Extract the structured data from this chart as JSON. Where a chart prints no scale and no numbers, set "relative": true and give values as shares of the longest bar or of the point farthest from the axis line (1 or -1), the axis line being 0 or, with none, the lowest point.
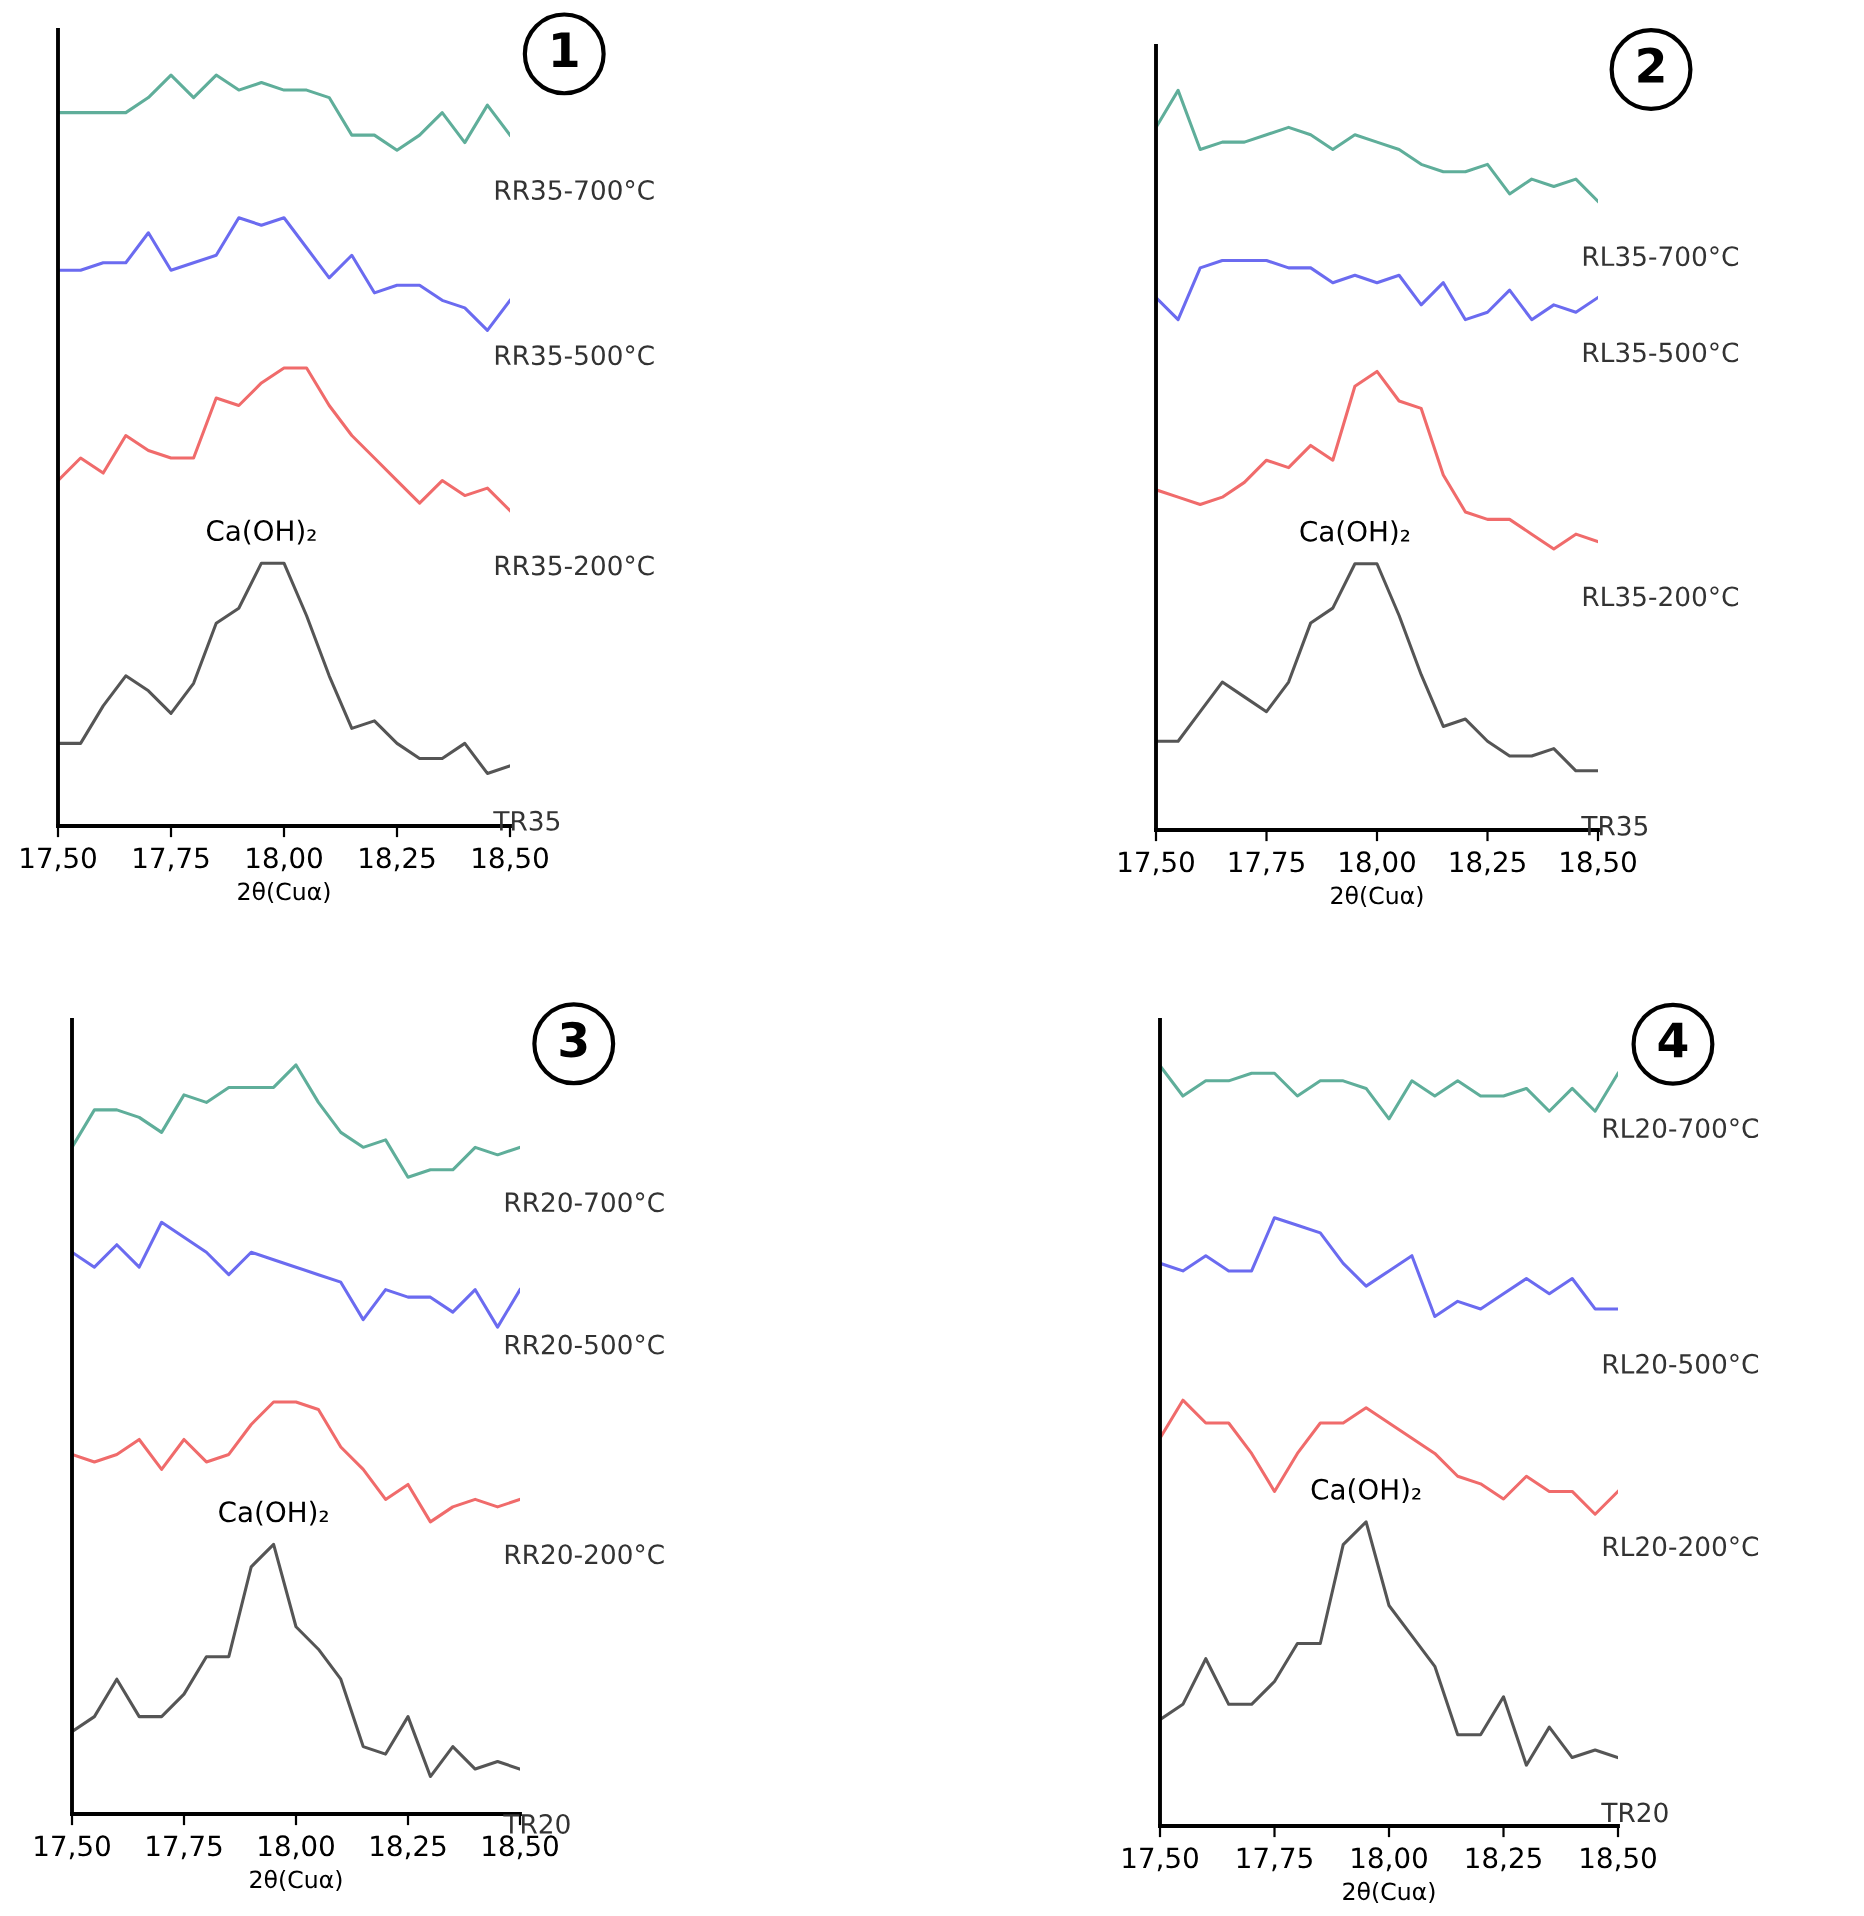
{
  "chart_data": [
    {
      "type": "line",
      "title": "1",
      "xlabel": "2θ(Cuα)",
      "relative": true,
      "legend": false,
      "grid": false,
      "tick_labels": "x",
      "x": [
        17.5,
        17.55,
        17.6,
        17.65,
        17.7,
        17.75,
        17.8,
        17.85,
        17.9,
        17.95,
        18.0,
        18.05,
        18.1,
        18.15,
        18.2,
        18.25,
        18.3,
        18.35,
        18.4,
        18.45,
        18.5
      ],
      "xlim": [
        17.5,
        18.5
      ],
      "xticks": [
        {
          "value": 17.5,
          "label": "17,50"
        },
        {
          "value": 17.75,
          "label": "17,75"
        },
        {
          "value": 18.0,
          "label": "18,00"
        },
        {
          "value": 18.25,
          "label": "18,25"
        },
        {
          "value": 18.5,
          "label": "18,50"
        }
      ],
      "annotations": [
        "Ca(OH)₂"
      ],
      "series": [
        {
          "name": "RR35-700°C",
          "color": "#5fae9a",
          "values": [
            0.95,
            0.95,
            0.95,
            0.95,
            0.97,
            1.0,
            0.97,
            1.0,
            0.98,
            0.99,
            0.98,
            0.98,
            0.97,
            0.92,
            0.92,
            0.9,
            0.92,
            0.95,
            0.91,
            0.96,
            0.92
          ]
        },
        {
          "name": "RR35-500°C",
          "color": "#6b6bf0",
          "values": [
            0.74,
            0.74,
            0.75,
            0.75,
            0.79,
            0.74,
            0.75,
            0.76,
            0.81,
            0.8,
            0.81,
            0.77,
            0.73,
            0.76,
            0.71,
            0.72,
            0.72,
            0.7,
            0.69,
            0.66,
            0.7
          ]
        },
        {
          "name": "RR35-200°C",
          "color": "#f06b6b",
          "values": [
            0.46,
            0.49,
            0.47,
            0.52,
            0.5,
            0.49,
            0.49,
            0.57,
            0.56,
            0.59,
            0.61,
            0.61,
            0.56,
            0.52,
            0.49,
            0.46,
            0.43,
            0.46,
            0.44,
            0.45,
            0.42
          ]
        },
        {
          "name": "TR35",
          "color": "#555555",
          "values": [
            0.11,
            0.11,
            0.16,
            0.2,
            0.18,
            0.15,
            0.19,
            0.27,
            0.29,
            0.35,
            0.35,
            0.28,
            0.2,
            0.13,
            0.14,
            0.11,
            0.09,
            0.09,
            0.11,
            0.07,
            0.08
          ]
        }
      ]
    },
    {
      "type": "line",
      "title": "2",
      "xlabel": "2θ(Cuα)",
      "relative": true,
      "legend": false,
      "grid": false,
      "tick_labels": "x",
      "x": [
        17.5,
        17.55,
        17.6,
        17.65,
        17.7,
        17.75,
        17.8,
        17.85,
        17.9,
        17.95,
        18.0,
        18.05,
        18.1,
        18.15,
        18.2,
        18.25,
        18.3,
        18.35,
        18.4,
        18.45,
        18.5
      ],
      "xlim": [
        17.5,
        18.5
      ],
      "xticks": [
        {
          "value": 17.5,
          "label": "17,50"
        },
        {
          "value": 17.75,
          "label": "17,75"
        },
        {
          "value": 18.0,
          "label": "18,00"
        },
        {
          "value": 18.25,
          "label": "18,25"
        },
        {
          "value": 18.5,
          "label": "18,50"
        }
      ],
      "annotations": [
        "Ca(OH)₂"
      ],
      "series": [
        {
          "name": "RL35-700°C",
          "color": "#5fae9a",
          "values": [
            0.95,
            1.0,
            0.92,
            0.93,
            0.93,
            0.94,
            0.95,
            0.94,
            0.92,
            0.94,
            0.93,
            0.92,
            0.9,
            0.89,
            0.89,
            0.9,
            0.86,
            0.88,
            0.87,
            0.88,
            0.85
          ]
        },
        {
          "name": "RL35-500°C",
          "color": "#6b6bf0",
          "values": [
            0.72,
            0.69,
            0.76,
            0.77,
            0.77,
            0.77,
            0.76,
            0.76,
            0.74,
            0.75,
            0.74,
            0.75,
            0.71,
            0.74,
            0.69,
            0.7,
            0.73,
            0.69,
            0.71,
            0.7,
            0.72
          ]
        },
        {
          "name": "RL35-200°C",
          "color": "#f06b6b",
          "values": [
            0.46,
            0.45,
            0.44,
            0.45,
            0.47,
            0.5,
            0.49,
            0.52,
            0.5,
            0.6,
            0.62,
            0.58,
            0.57,
            0.48,
            0.43,
            0.42,
            0.42,
            0.4,
            0.38,
            0.4,
            0.39
          ]
        },
        {
          "name": "TR35",
          "color": "#555555",
          "values": [
            0.12,
            0.12,
            0.16,
            0.2,
            0.18,
            0.16,
            0.2,
            0.28,
            0.3,
            0.36,
            0.36,
            0.29,
            0.21,
            0.14,
            0.15,
            0.12,
            0.1,
            0.1,
            0.11,
            0.08,
            0.08
          ]
        }
      ]
    },
    {
      "type": "line",
      "title": "3",
      "xlabel": "2θ(Cuα)",
      "relative": true,
      "legend": false,
      "grid": false,
      "tick_labels": "x",
      "x": [
        17.5,
        17.55,
        17.6,
        17.65,
        17.7,
        17.75,
        17.8,
        17.85,
        17.9,
        17.95,
        18.0,
        18.05,
        18.1,
        18.15,
        18.2,
        18.25,
        18.3,
        18.35,
        18.4,
        18.45,
        18.5
      ],
      "xlim": [
        17.5,
        18.5
      ],
      "xticks": [
        {
          "value": 17.5,
          "label": "17,50"
        },
        {
          "value": 17.75,
          "label": "17,75"
        },
        {
          "value": 18.0,
          "label": "18,00"
        },
        {
          "value": 18.25,
          "label": "18,25"
        },
        {
          "value": 18.5,
          "label": "18,50"
        }
      ],
      "annotations": [
        "Ca(OH)₂"
      ],
      "series": [
        {
          "name": "RR20-700°C",
          "color": "#5fae9a",
          "values": [
            0.89,
            0.94,
            0.94,
            0.93,
            0.91,
            0.96,
            0.95,
            0.97,
            0.97,
            0.97,
            1.0,
            0.95,
            0.91,
            0.89,
            0.9,
            0.85,
            0.86,
            0.86,
            0.89,
            0.88,
            0.89
          ]
        },
        {
          "name": "RR20-500°C",
          "color": "#6b6bf0",
          "values": [
            0.75,
            0.73,
            0.76,
            0.73,
            0.79,
            0.77,
            0.75,
            0.72,
            0.75,
            0.74,
            0.73,
            0.72,
            0.71,
            0.66,
            0.7,
            0.69,
            0.69,
            0.67,
            0.7,
            0.65,
            0.7
          ]
        },
        {
          "name": "RR20-200°C",
          "color": "#f06b6b",
          "values": [
            0.48,
            0.47,
            0.48,
            0.5,
            0.46,
            0.5,
            0.47,
            0.48,
            0.52,
            0.55,
            0.55,
            0.54,
            0.49,
            0.46,
            0.42,
            0.44,
            0.39,
            0.41,
            0.42,
            0.41,
            0.42
          ]
        },
        {
          "name": "TR20",
          "color": "#555555",
          "values": [
            0.11,
            0.13,
            0.18,
            0.13,
            0.13,
            0.16,
            0.21,
            0.21,
            0.33,
            0.36,
            0.25,
            0.22,
            0.18,
            0.09,
            0.08,
            0.13,
            0.05,
            0.09,
            0.06,
            0.07,
            0.06
          ]
        }
      ]
    },
    {
      "type": "line",
      "title": "4",
      "xlabel": "2θ(Cuα)",
      "relative": true,
      "legend": false,
      "grid": false,
      "tick_labels": "x",
      "x": [
        17.5,
        17.55,
        17.6,
        17.65,
        17.7,
        17.75,
        17.8,
        17.85,
        17.9,
        17.95,
        18.0,
        18.05,
        18.1,
        18.15,
        18.2,
        18.25,
        18.3,
        18.35,
        18.4,
        18.45,
        18.5
      ],
      "xlim": [
        17.5,
        18.5
      ],
      "xticks": [
        {
          "value": 17.5,
          "label": "17,50"
        },
        {
          "value": 17.75,
          "label": "17,75"
        },
        {
          "value": 18.0,
          "label": "18,00"
        },
        {
          "value": 18.25,
          "label": "18,25"
        },
        {
          "value": 18.5,
          "label": "18,50"
        }
      ],
      "annotations": [
        "Ca(OH)₂"
      ],
      "series": [
        {
          "name": "RL20-700°C",
          "color": "#5fae9a",
          "values": [
            1.0,
            0.96,
            0.98,
            0.98,
            0.99,
            0.99,
            0.96,
            0.98,
            0.98,
            0.97,
            0.93,
            0.98,
            0.96,
            0.98,
            0.96,
            0.96,
            0.97,
            0.94,
            0.97,
            0.94,
            0.99
          ]
        },
        {
          "name": "RL20-500°C",
          "color": "#6b6bf0",
          "values": [
            0.74,
            0.73,
            0.75,
            0.73,
            0.73,
            0.8,
            0.79,
            0.78,
            0.74,
            0.71,
            0.73,
            0.75,
            0.67,
            0.69,
            0.68,
            0.7,
            0.72,
            0.7,
            0.72,
            0.68,
            0.68
          ]
        },
        {
          "name": "RL20-200°C",
          "color": "#f06b6b",
          "values": [
            0.51,
            0.56,
            0.53,
            0.53,
            0.49,
            0.44,
            0.49,
            0.53,
            0.53,
            0.55,
            0.53,
            0.51,
            0.49,
            0.46,
            0.45,
            0.43,
            0.46,
            0.44,
            0.44,
            0.41,
            0.44
          ]
        },
        {
          "name": "TR20",
          "color": "#555555",
          "values": [
            0.14,
            0.16,
            0.22,
            0.16,
            0.16,
            0.19,
            0.24,
            0.24,
            0.37,
            0.4,
            0.29,
            0.25,
            0.21,
            0.12,
            0.12,
            0.17,
            0.08,
            0.13,
            0.09,
            0.1,
            0.09
          ]
        }
      ]
    }
  ]
}
